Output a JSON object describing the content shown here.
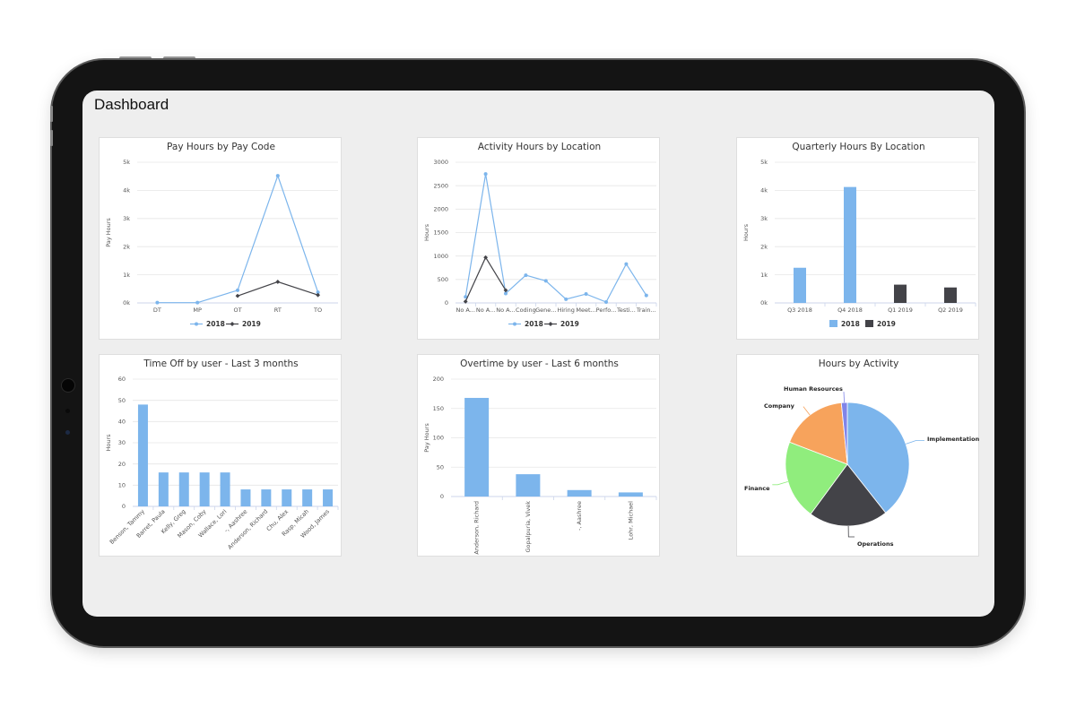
{
  "page": {
    "title": "Dashboard"
  },
  "colors": {
    "series2018": "#7cb5ec",
    "series2019": "#434348",
    "pie": [
      "#7cb5ec",
      "#434348",
      "#90ed7d",
      "#f7a35c",
      "#8085e9"
    ]
  },
  "chart_data": [
    {
      "id": "pay-hours",
      "type": "line",
      "title": "Pay Hours by Pay Code",
      "xlabel": "",
      "ylabel": "Pay Hours",
      "categories": [
        "DT",
        "MP",
        "OT",
        "RT",
        "TO"
      ],
      "ylim": [
        0,
        5000
      ],
      "yticks": [
        {
          "v": 0,
          "label": "0k"
        },
        {
          "v": 1000,
          "label": "1k"
        },
        {
          "v": 2000,
          "label": "2k"
        },
        {
          "v": 3000,
          "label": "3k"
        },
        {
          "v": 4000,
          "label": "4k"
        },
        {
          "v": 5000,
          "label": "5k"
        }
      ],
      "series": [
        {
          "name": "2018",
          "values": [
            10,
            10,
            450,
            4520,
            380
          ]
        },
        {
          "name": "2019",
          "values": [
            null,
            null,
            250,
            750,
            280
          ]
        }
      ],
      "legend": "bottom-center",
      "grid": true
    },
    {
      "id": "activity-hours",
      "type": "line",
      "title": "Activity Hours by Location",
      "xlabel": "",
      "ylabel": "Hours",
      "categories": [
        "No A...",
        "No A...",
        "No A...",
        "Coding",
        "Gene...",
        "Hiring",
        "Meet...",
        "Perfo...",
        "Testi...",
        "Train..."
      ],
      "ylim": [
        0,
        3000
      ],
      "yticks": [
        {
          "v": 0,
          "label": "0"
        },
        {
          "v": 500,
          "label": "500"
        },
        {
          "v": 1000,
          "label": "1000"
        },
        {
          "v": 1500,
          "label": "1500"
        },
        {
          "v": 2000,
          "label": "2000"
        },
        {
          "v": 2500,
          "label": "2500"
        },
        {
          "v": 3000,
          "label": "3000"
        }
      ],
      "series": [
        {
          "name": "2018",
          "values": [
            130,
            2750,
            200,
            590,
            470,
            80,
            190,
            20,
            830,
            160
          ]
        },
        {
          "name": "2019",
          "values": [
            30,
            970,
            270,
            null,
            null,
            null,
            null,
            null,
            null,
            null
          ]
        }
      ],
      "legend": "bottom-center",
      "grid": true
    },
    {
      "id": "quarterly-hours",
      "type": "bar",
      "title": "Quarterly Hours By Location",
      "xlabel": "",
      "ylabel": "Hours",
      "categories": [
        "Q3 2018",
        "Q4 2018",
        "Q1 2019",
        "Q2 2019"
      ],
      "ylim": [
        0,
        5000
      ],
      "yticks": [
        {
          "v": 0,
          "label": "0k"
        },
        {
          "v": 1000,
          "label": "1k"
        },
        {
          "v": 2000,
          "label": "2k"
        },
        {
          "v": 3000,
          "label": "3k"
        },
        {
          "v": 4000,
          "label": "4k"
        },
        {
          "v": 5000,
          "label": "5k"
        }
      ],
      "series": [
        {
          "name": "2018",
          "values": [
            1250,
            4120,
            null,
            null
          ]
        },
        {
          "name": "2019",
          "values": [
            null,
            null,
            650,
            550
          ]
        }
      ],
      "legend": "bottom-center",
      "grid": true
    },
    {
      "id": "time-off",
      "type": "bar",
      "title": "Time Off by user - Last 3 months",
      "xlabel": "",
      "ylabel": "Hours",
      "categories": [
        "Benson, Tammy",
        "Barret, Paula",
        "Kelly, Greg",
        "Mason, Coby",
        "Wallace, Lori",
        "-, Aashree",
        "Anderson, Richard",
        "Chu, Alex",
        "Rasp, Micah",
        "Wood, James"
      ],
      "ylim": [
        0,
        60
      ],
      "yticks": [
        {
          "v": 0,
          "label": "0"
        },
        {
          "v": 10,
          "label": "10"
        },
        {
          "v": 20,
          "label": "20"
        },
        {
          "v": 30,
          "label": "30"
        },
        {
          "v": 40,
          "label": "40"
        },
        {
          "v": 50,
          "label": "50"
        },
        {
          "v": 60,
          "label": "60"
        }
      ],
      "series": [
        {
          "name": "",
          "values": [
            48,
            16,
            16,
            16,
            16,
            8,
            8,
            8,
            8,
            8
          ]
        }
      ],
      "grid": true
    },
    {
      "id": "overtime",
      "type": "bar",
      "title": "Overtime by user - Last 6 months",
      "xlabel": "",
      "ylabel": "Pay Hours",
      "categories": [
        "Anderson, Richard",
        "Gopalpuria, Vivek",
        "-, Aashree",
        "Lohr, Michael"
      ],
      "ylim": [
        0,
        200
      ],
      "yticks": [
        {
          "v": 0,
          "label": "0"
        },
        {
          "v": 50,
          "label": "50"
        },
        {
          "v": 100,
          "label": "100"
        },
        {
          "v": 150,
          "label": "150"
        },
        {
          "v": 200,
          "label": "200"
        }
      ],
      "series": [
        {
          "name": "",
          "values": [
            168,
            38,
            11,
            7
          ]
        }
      ],
      "grid": true
    },
    {
      "id": "hours-by-activity",
      "type": "pie",
      "title": "Hours by Activity",
      "slices": [
        {
          "label": "Implementation",
          "value": 38
        },
        {
          "label": "Operations",
          "value": 20
        },
        {
          "label": "Finance",
          "value": 20
        },
        {
          "label": "Company",
          "value": 17
        },
        {
          "label": "Human Resources",
          "value": 1.5
        }
      ]
    }
  ]
}
